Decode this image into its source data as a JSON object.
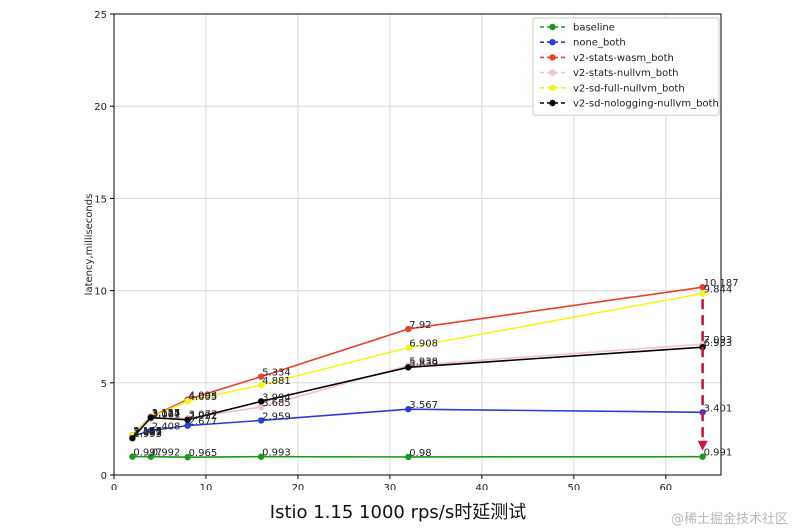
{
  "caption": "Istio 1.15 1000 rps/s时延测试",
  "watermark": "@稀土掘金技术社区",
  "chart_data": {
    "type": "line",
    "title": "",
    "xlabel": "",
    "ylabel": "latency,milliseconds",
    "xlim": [
      0,
      66
    ],
    "ylim": [
      0,
      25
    ],
    "xticks": [
      0,
      10,
      20,
      30,
      40,
      50,
      60
    ],
    "yticks": [
      0,
      5,
      10,
      15,
      20,
      25
    ],
    "grid": true,
    "legend_position": "top-right",
    "x": [
      2,
      4,
      8,
      16,
      32,
      64
    ],
    "series": [
      {
        "name": "baseline",
        "color": "#1a9a1a",
        "values": [
          0.997,
          0.992,
          0.965,
          0.993,
          0.98,
          0.991
        ],
        "labels": [
          "0.997",
          "0.992",
          "0.965",
          "0.993",
          "0.98",
          "0.991"
        ]
      },
      {
        "name": "none_both",
        "color": "#2a3fd6",
        "values": [
          2.099,
          2.408,
          2.677,
          2.959,
          3.567,
          3.401
        ],
        "labels": [
          "2.099",
          "2.408",
          "2.677",
          "2.959",
          "3.567",
          "3.401"
        ]
      },
      {
        "name": "v2-stats-wasm_both",
        "color": "#e8402c",
        "values": [
          2.157,
          3.155,
          4.093,
          5.334,
          7.92,
          10.187
        ],
        "labels": [
          "2.157",
          "3.155",
          "4.093",
          "5.334",
          "7.92",
          "10.187"
        ]
      },
      {
        "name": "v2-stats-nullvm_both",
        "color": "#f7c1c8",
        "values": [
          2.121,
          3.061,
          3.077,
          3.685,
          5.938,
          7.093
        ],
        "labels": [
          "2.121",
          "3.061",
          "3.077",
          "3.685",
          "5.938",
          "7.093"
        ]
      },
      {
        "name": "v2-sd-full-nullvm_both",
        "color": "#f5f51e",
        "values": [
          2.143,
          3.127,
          4.005,
          4.881,
          6.908,
          9.844
        ],
        "labels": [
          "2.143",
          "3.127",
          "4.005",
          "4.881",
          "6.908",
          "9.844"
        ]
      },
      {
        "name": "v2-sd-nologging-nullvm_both",
        "color": "#000000",
        "values": [
          1.993,
          3.114,
          2.992,
          3.994,
          5.839,
          6.933
        ],
        "labels": [
          "1.993",
          "3.114",
          "2.992",
          "3.994",
          "5.839",
          "6.933"
        ]
      }
    ],
    "annotations": [
      {
        "type": "arrow",
        "style": "dashed",
        "color": "#d4143c",
        "x": 64,
        "from": 10.187,
        "to": 0.991
      }
    ]
  }
}
